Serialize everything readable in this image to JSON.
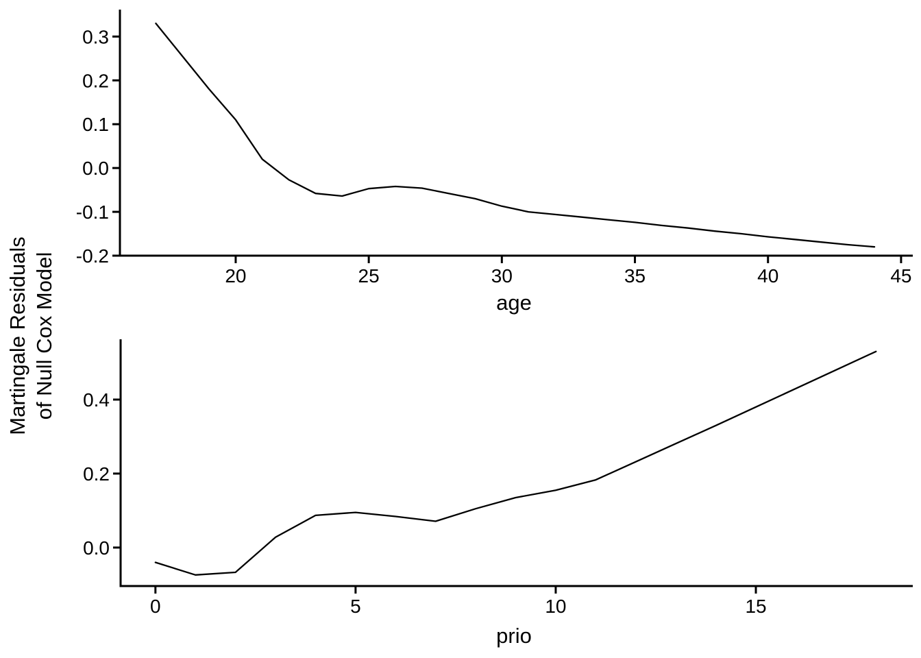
{
  "figure": {
    "background": "#ffffff",
    "axis_color": "#000000",
    "curve_color": "#000000",
    "y_axis_label_line1": "Martingale Residuals",
    "y_axis_label_line2": "of Null Cox Model"
  },
  "chart_data": [
    {
      "panel": "top",
      "type": "line",
      "title": "",
      "xlabel": "age",
      "ylabel": "Martingale Residuals of Null Cox Model",
      "grid": false,
      "legend": null,
      "xlim": [
        15.65,
        45.44
      ],
      "ylim": [
        -0.2,
        0.3615
      ],
      "x_ticks": [
        20,
        25,
        30,
        35,
        40,
        45
      ],
      "y_ticks": [
        0.3,
        0.2,
        0.1,
        0.0,
        -0.1,
        -0.2
      ],
      "x": [
        17,
        18,
        19,
        20,
        21,
        22,
        23,
        24,
        25,
        26,
        27,
        28,
        29,
        30,
        31,
        32,
        33,
        34,
        35,
        36,
        37,
        38,
        39,
        40,
        41,
        42,
        43,
        44
      ],
      "y": [
        0.33,
        0.255,
        0.18,
        0.11,
        0.02,
        -0.027,
        -0.058,
        -0.064,
        -0.047,
        -0.042,
        -0.046,
        -0.058,
        -0.07,
        -0.087,
        -0.1,
        -0.106,
        -0.112,
        -0.118,
        -0.124,
        -0.131,
        -0.137,
        -0.144,
        -0.15,
        -0.157,
        -0.163,
        -0.169,
        -0.175,
        -0.18
      ]
    },
    {
      "panel": "bottom",
      "type": "line",
      "title": "",
      "xlabel": "prio",
      "ylabel": "Martingale Residuals of Null Cox Model",
      "grid": false,
      "legend": null,
      "xlim": [
        -0.87,
        18.92
      ],
      "ylim": [
        -0.104,
        0.563
      ],
      "x_ticks": [
        0,
        5,
        10,
        15
      ],
      "y_ticks": [
        0.4,
        0.2,
        0.0
      ],
      "x": [
        0,
        1,
        2,
        3,
        4,
        5,
        6,
        7,
        8,
        9,
        10,
        11,
        12,
        13,
        14,
        15,
        16,
        17,
        18
      ],
      "y": [
        -0.04,
        -0.074,
        -0.067,
        0.028,
        0.087,
        0.095,
        0.084,
        0.071,
        0.105,
        0.135,
        0.155,
        0.183,
        0.232,
        0.281,
        0.33,
        0.38,
        0.43,
        0.48,
        0.53
      ]
    }
  ]
}
